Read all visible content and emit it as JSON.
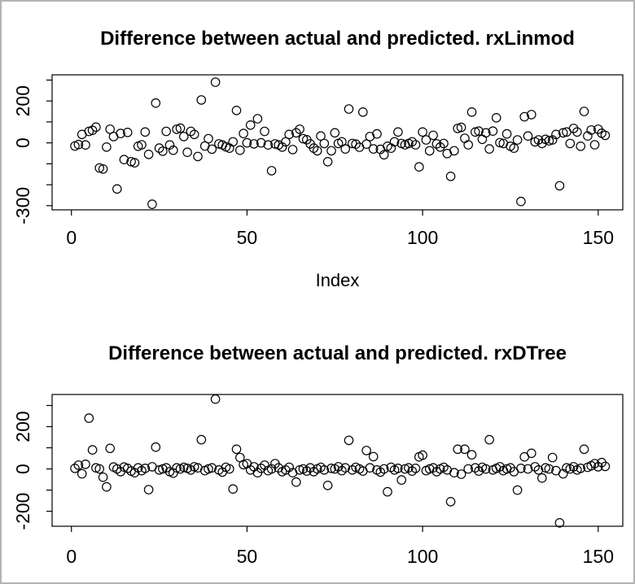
{
  "window": {
    "background_color": "#ffffff",
    "frame_border_color": "#b3b3b3"
  },
  "chart_data": [
    {
      "type": "scatter",
      "title": "Difference between actual and predicted. rxLinmod",
      "xlabel": "Index",
      "ylabel": "",
      "marker": "open-circle",
      "marker_color": "#000000",
      "grid": false,
      "legend": "none",
      "xlim": [
        -5.5,
        157
      ],
      "ylim": [
        -320,
        325
      ],
      "xticks": [
        0,
        50,
        100,
        150
      ],
      "yticks": [
        -300,
        -200,
        -100,
        0,
        100,
        200,
        300
      ],
      "ytick_labels_shown": [
        "-300",
        "0",
        "200"
      ],
      "x_rule": "index 1..n",
      "n_points": 152,
      "y": [
        -15,
        -8,
        40,
        -10,
        55,
        60,
        75,
        -120,
        -125,
        -20,
        65,
        30,
        -220,
        45,
        -80,
        50,
        -90,
        -95,
        -16,
        -9,
        52,
        -55,
        -293,
        190,
        -25,
        -40,
        55,
        -10,
        -35,
        65,
        70,
        30,
        -45,
        55,
        40,
        -65,
        205,
        -15,
        20,
        -30,
        290,
        -5,
        -10,
        -19,
        -25,
        5,
        155,
        -35,
        45,
        0,
        85,
        -5,
        115,
        0,
        55,
        -10,
        -133,
        -5,
        -10,
        -20,
        5,
        40,
        -32,
        48,
        65,
        20,
        15,
        -5,
        -25,
        -38,
        33,
        -3,
        -90,
        -38,
        48,
        -3,
        5,
        -29,
        162,
        -3,
        -6,
        -21,
        147,
        -6,
        30,
        -29,
        43,
        -31,
        -57,
        -16,
        -25,
        5,
        52,
        -3,
        -9,
        -3,
        5,
        -9,
        -115,
        52,
        14,
        -38,
        36,
        -5,
        -20,
        -3,
        -51,
        -160,
        -38,
        69,
        74,
        22,
        -9,
        147,
        52,
        56,
        17,
        48,
        -29,
        56,
        120,
        1,
        -3,
        43,
        -16,
        -25,
        14,
        -280,
        125,
        33,
        135,
        5,
        14,
        -3,
        17,
        10,
        14,
        40,
        -205,
        48,
        52,
        -3,
        69,
        52,
        -16,
        150,
        33,
        61,
        -9,
        65,
        46,
        36
      ]
    },
    {
      "type": "scatter",
      "title": "Difference between actual and predicted. rxDTree",
      "xlabel": "",
      "ylabel": "",
      "marker": "open-circle",
      "marker_color": "#000000",
      "grid": false,
      "legend": "none",
      "xlim": [
        -5.5,
        157
      ],
      "ylim": [
        -271,
        352
      ],
      "xticks": [
        0,
        50,
        100,
        150
      ],
      "yticks": [
        -200,
        -100,
        0,
        100,
        200,
        300
      ],
      "ytick_labels_shown": [
        "-200",
        "0",
        "200"
      ],
      "x_rule": "index 1..n",
      "n_points": 152,
      "y": [
        3,
        18,
        -23,
        22,
        240,
        90,
        5,
        0,
        -39,
        -85,
        97,
        9,
        0,
        -13,
        9,
        3,
        -10,
        -18,
        5,
        -8,
        3,
        -98,
        10,
        103,
        -5,
        0,
        5,
        -13,
        -20,
        5,
        0,
        8,
        3,
        -5,
        10,
        5,
        138,
        -8,
        0,
        5,
        330,
        -5,
        -15,
        8,
        0,
        -95,
        93,
        54,
        20,
        25,
        -5,
        10,
        -18,
        3,
        18,
        -8,
        0,
        25,
        5,
        -13,
        -5,
        8,
        -18,
        -62,
        -5,
        0,
        -10,
        5,
        -13,
        0,
        8,
        -5,
        -78,
        3,
        0,
        10,
        -8,
        5,
        135,
        -5,
        8,
        0,
        -10,
        87,
        5,
        58,
        -5,
        -15,
        0,
        -108,
        8,
        -5,
        3,
        -52,
        0,
        5,
        -10,
        3,
        57,
        65,
        -8,
        0,
        5,
        -13,
        0,
        8,
        -5,
        -155,
        -18,
        93,
        -25,
        93,
        0,
        67,
        5,
        -10,
        8,
        0,
        138,
        -5,
        3,
        10,
        -8,
        0,
        5,
        -13,
        -100,
        3,
        57,
        0,
        74,
        10,
        -5,
        -43,
        5,
        0,
        54,
        -8,
        -255,
        -23,
        5,
        0,
        10,
        -5,
        3,
        93,
        8,
        15,
        25,
        10,
        30,
        12
      ]
    }
  ]
}
